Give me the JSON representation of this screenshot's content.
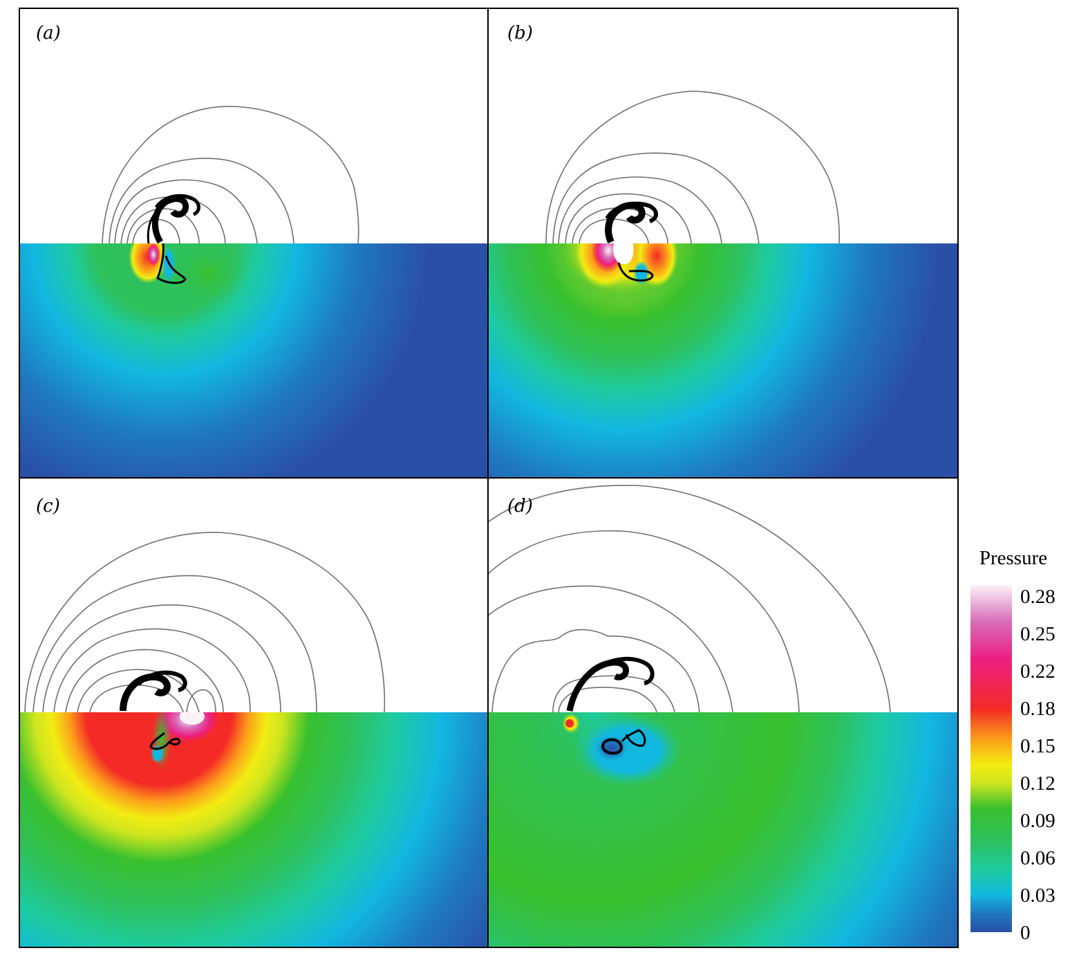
{
  "chart_data": {
    "type": "heatmap",
    "panels": [
      {
        "label": "(a)",
        "id": "a"
      },
      {
        "label": "(b)",
        "id": "b"
      },
      {
        "label": "(c)",
        "id": "c"
      },
      {
        "label": "(d)",
        "id": "d"
      }
    ],
    "colorbar": {
      "title": "Pressure",
      "ticks": [
        "0.28",
        "0.25",
        "0.22",
        "0.18",
        "0.15",
        "0.12",
        "0.09",
        "0.06",
        "0.03",
        "0"
      ],
      "range": [
        0,
        0.28
      ],
      "stops": [
        {
          "value": 0.0,
          "color": "#2a4fa6"
        },
        {
          "value": 0.015,
          "color": "#1f78c0"
        },
        {
          "value": 0.03,
          "color": "#12b7e0"
        },
        {
          "value": 0.05,
          "color": "#1ecba0"
        },
        {
          "value": 0.075,
          "color": "#2ec05a"
        },
        {
          "value": 0.1,
          "color": "#38c02e"
        },
        {
          "value": 0.12,
          "color": "#cde51f"
        },
        {
          "value": 0.135,
          "color": "#f2ec12"
        },
        {
          "value": 0.155,
          "color": "#fca01a"
        },
        {
          "value": 0.18,
          "color": "#f42a26"
        },
        {
          "value": 0.22,
          "color": "#ed1f82"
        },
        {
          "value": 0.25,
          "color": "#d86bb7"
        },
        {
          "value": 0.28,
          "color": "#fbf2f8"
        }
      ]
    }
  }
}
